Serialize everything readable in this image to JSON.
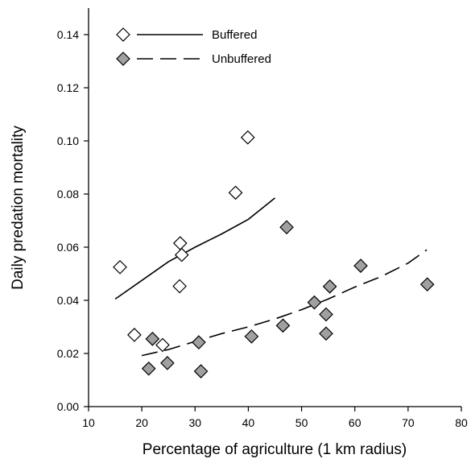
{
  "chart_data": {
    "type": "scatter",
    "title": "",
    "xlabel": "Percentage of agriculture (1 km radius)",
    "ylabel": "Daily predation mortality",
    "xlim": [
      10,
      80
    ],
    "ylim": [
      0,
      0.15
    ],
    "xticks": [
      10,
      20,
      30,
      40,
      50,
      60,
      70,
      80
    ],
    "yticks": [
      0.0,
      0.02,
      0.04,
      0.06,
      0.08,
      0.1,
      0.12,
      0.14
    ],
    "ytick_labels": [
      "0.00",
      "0.02",
      "0.04",
      "0.06",
      "0.08",
      "0.10",
      "0.12",
      "0.14"
    ],
    "grid": false,
    "legend_position": "top-left",
    "series": [
      {
        "name": "Buffered",
        "marker": "diamond-open",
        "line_style": "solid",
        "color": "#ffffff",
        "points": [
          [
            15.9,
            0.0525
          ],
          [
            18.6,
            0.027
          ],
          [
            23.9,
            0.0232
          ],
          [
            27.1,
            0.0453
          ],
          [
            27.2,
            0.0615
          ],
          [
            27.5,
            0.0571
          ],
          [
            37.6,
            0.0805
          ],
          [
            39.9,
            0.1013
          ]
        ],
        "fit": [
          [
            15.0,
            0.0405
          ],
          [
            20.0,
            0.0475
          ],
          [
            25.0,
            0.0545
          ],
          [
            30.0,
            0.06
          ],
          [
            35.0,
            0.065
          ],
          [
            40.0,
            0.0705
          ],
          [
            45.0,
            0.0785
          ]
        ]
      },
      {
        "name": "Unbuffered",
        "marker": "diamond-filled",
        "line_style": "dashed",
        "color": "#a0a0a0",
        "points": [
          [
            21.3,
            0.0143
          ],
          [
            22.0,
            0.0255
          ],
          [
            24.8,
            0.0164
          ],
          [
            30.7,
            0.0242
          ],
          [
            31.1,
            0.0133
          ],
          [
            40.6,
            0.0264
          ],
          [
            46.5,
            0.0305
          ],
          [
            47.2,
            0.0675
          ],
          [
            52.4,
            0.0392
          ],
          [
            54.6,
            0.0347
          ],
          [
            54.6,
            0.0275
          ],
          [
            55.3,
            0.0452
          ],
          [
            61.1,
            0.053
          ],
          [
            73.6,
            0.046
          ]
        ],
        "fit": [
          [
            20.0,
            0.0192
          ],
          [
            25.0,
            0.0215
          ],
          [
            30.0,
            0.0245
          ],
          [
            35.0,
            0.0275
          ],
          [
            40.0,
            0.03
          ],
          [
            45.0,
            0.033
          ],
          [
            50.0,
            0.0365
          ],
          [
            55.0,
            0.0405
          ],
          [
            60.0,
            0.045
          ],
          [
            65.0,
            0.049
          ],
          [
            70.0,
            0.054
          ],
          [
            73.5,
            0.059
          ]
        ]
      }
    ]
  }
}
